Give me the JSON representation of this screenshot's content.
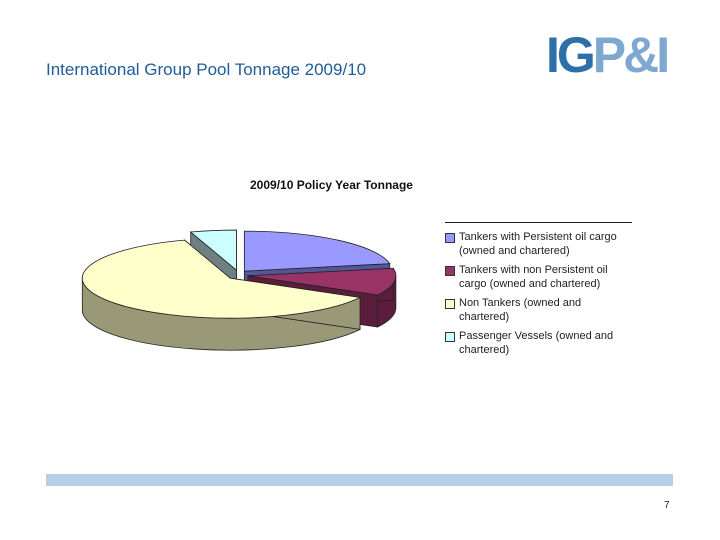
{
  "slide": {
    "title": "International Group Pool Tonnage 2009/10",
    "page_number": "7"
  },
  "logo": {
    "part1": "IG",
    "part2": "P&I"
  },
  "chart_data": {
    "type": "pie",
    "title": "2009/10 Policy Year Tonnage",
    "legend_position": "right",
    "slices": [
      {
        "label": "Tankers with Persistent oil cargo (owned and chartered)",
        "value": 22,
        "color": "#9999ff",
        "side_color": "#555599"
      },
      {
        "label": "Tankers with non Persistent oil cargo (owned and chartered)",
        "value": 11,
        "color": "#993366",
        "side_color": "#5a1e3c"
      },
      {
        "label": "Non Tankers (owned and chartered)",
        "value": 62,
        "color": "#ffffcc",
        "side_color": "#999977"
      },
      {
        "label": "Passenger Vessels (owned and chartered)",
        "value": 5,
        "color": "#ccffff",
        "side_color": "#6e8080"
      }
    ]
  }
}
